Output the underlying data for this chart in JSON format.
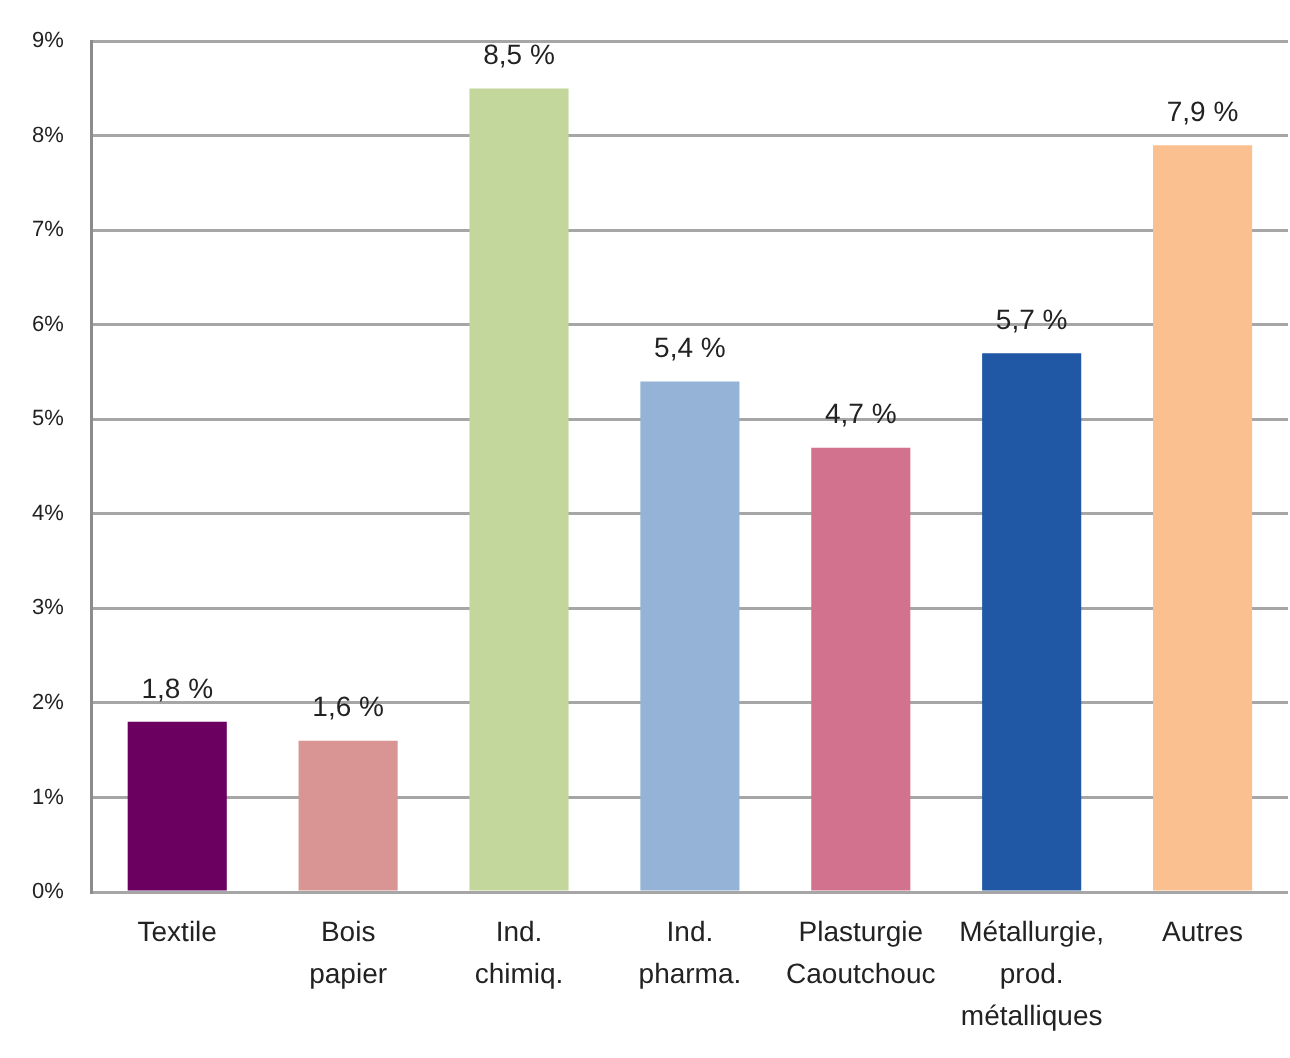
{
  "chart_data": {
    "type": "bar",
    "categories": [
      "Textile",
      "Bois papier",
      "Ind. chimiq.",
      "Ind. pharma.",
      "Plasturgie Caoutchouc",
      "Métallurgie, prod. métalliques",
      "Autres"
    ],
    "values": [
      1.8,
      1.6,
      8.5,
      5.4,
      4.7,
      5.7,
      7.9
    ],
    "colors": [
      "#6b0061",
      "#d99594",
      "#c3d69b",
      "#95b3d7",
      "#d3728f",
      "#2058a5",
      "#fac08f"
    ],
    "value_labels": [
      "1,8 %",
      "1,6 %",
      "8,5 %",
      "5,4 %",
      "4,7 %",
      "5,7 %",
      "7,9 %"
    ],
    "ylim": [
      0,
      9
    ],
    "yticks": [
      {
        "value": 0,
        "label": "0%"
      },
      {
        "value": 1,
        "label": "1%"
      },
      {
        "value": 2,
        "label": "2%"
      },
      {
        "value": 3,
        "label": "3%"
      },
      {
        "value": 4,
        "label": "4%"
      },
      {
        "value": 5,
        "label": "5%"
      },
      {
        "value": 6,
        "label": "6%"
      },
      {
        "value": 7,
        "label": "7%"
      },
      {
        "value": 8,
        "label": "8%"
      },
      {
        "value": 9,
        "label": "9%"
      }
    ],
    "grid": "y"
  }
}
